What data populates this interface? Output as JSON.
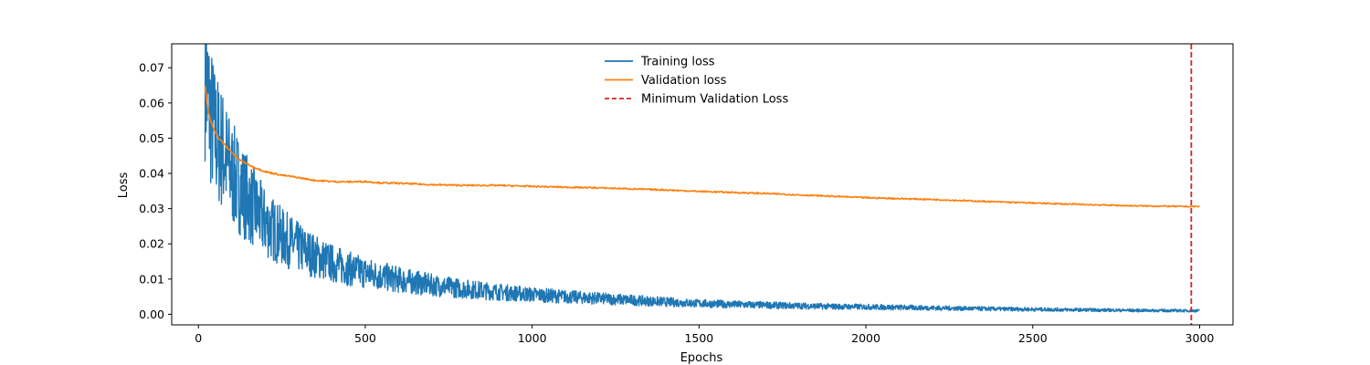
{
  "chart_data": {
    "type": "line",
    "title": "",
    "xlabel": "Epochs",
    "ylabel": "Loss",
    "xlim": [
      -80,
      3100
    ],
    "ylim": [
      -0.003,
      0.0768
    ],
    "xticks": [
      0,
      500,
      1000,
      1500,
      2000,
      2500,
      3000
    ],
    "xtick_labels": [
      "0",
      "500",
      "1000",
      "1500",
      "2000",
      "2500",
      "3000"
    ],
    "yticks": [
      0.0,
      0.01,
      0.02,
      0.03,
      0.04,
      0.05,
      0.06,
      0.07
    ],
    "ytick_labels": [
      "0.00",
      "0.01",
      "0.02",
      "0.03",
      "0.04",
      "0.05",
      "0.06",
      "0.07"
    ],
    "grid": false,
    "legend_position": "upper center",
    "series": [
      {
        "name": "Training loss",
        "color": "#1f77b4",
        "style": "solid",
        "noisy": true,
        "x": [
          20,
          25,
          30,
          40,
          50,
          60,
          70,
          80,
          90,
          100,
          120,
          140,
          160,
          200,
          250,
          300,
          350,
          400,
          450,
          500,
          600,
          700,
          800,
          900,
          1000,
          1100,
          1200,
          1300,
          1400,
          1500,
          1600,
          1700,
          1800,
          1900,
          2000,
          2200,
          2400,
          2600,
          2800,
          3000
        ],
        "y": [
          0.07,
          0.064,
          0.06,
          0.055,
          0.051,
          0.049,
          0.047,
          0.045,
          0.042,
          0.04,
          0.037,
          0.034,
          0.031,
          0.026,
          0.022,
          0.019,
          0.0165,
          0.0145,
          0.013,
          0.0118,
          0.0098,
          0.0083,
          0.0072,
          0.0063,
          0.0056,
          0.005,
          0.0045,
          0.004,
          0.0035,
          0.0031,
          0.0028,
          0.0026,
          0.0024,
          0.0022,
          0.0021,
          0.0018,
          0.0015,
          0.0013,
          0.0011,
          0.001
        ]
      },
      {
        "name": "Validation loss",
        "color": "#ff7f0e",
        "style": "solid",
        "noisy": false,
        "x": [
          20,
          30,
          40,
          50,
          60,
          80,
          100,
          120,
          140,
          160,
          200,
          250,
          300,
          350,
          400,
          450,
          500,
          550,
          600,
          700,
          800,
          900,
          1000,
          1100,
          1200,
          1300,
          1400,
          1500,
          1600,
          1700,
          1800,
          1900,
          2000,
          2200,
          2400,
          2600,
          2800,
          2970,
          3000
        ],
        "y": [
          0.065,
          0.057,
          0.054,
          0.052,
          0.05,
          0.048,
          0.046,
          0.044,
          0.043,
          0.042,
          0.0405,
          0.0395,
          0.0388,
          0.038,
          0.0377,
          0.0376,
          0.0377,
          0.0373,
          0.0372,
          0.0368,
          0.0366,
          0.0366,
          0.0363,
          0.0361,
          0.0359,
          0.0356,
          0.0353,
          0.0349,
          0.0346,
          0.0343,
          0.0339,
          0.0335,
          0.0331,
          0.0326,
          0.0319,
          0.0313,
          0.0308,
          0.0306,
          0.0306
        ]
      }
    ],
    "vlines": [
      {
        "name": "Minimum Validation Loss",
        "x": 2975,
        "color": "#d62728",
        "style": "dashed"
      }
    ]
  }
}
